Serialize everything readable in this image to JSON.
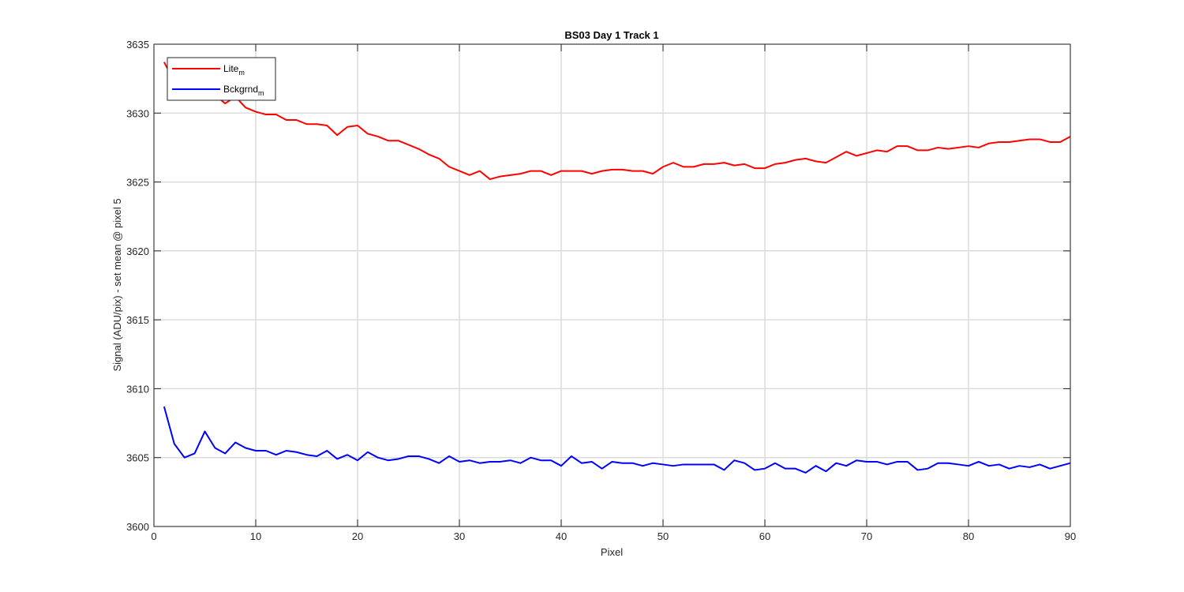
{
  "chart_data": {
    "type": "line",
    "title": "BS03 Day 1 Track 1",
    "xlabel": "Pixel",
    "ylabel": "Signal (ADU/pix) - set mean @ pixel 5",
    "xlim": [
      0,
      90
    ],
    "ylim": [
      3600,
      3635
    ],
    "xticks": [
      0,
      10,
      20,
      30,
      40,
      50,
      60,
      70,
      80,
      90
    ],
    "yticks": [
      3600,
      3605,
      3610,
      3615,
      3620,
      3625,
      3630,
      3635
    ],
    "grid": true,
    "legend_position": "top-left",
    "x": [
      1,
      2,
      3,
      4,
      5,
      6,
      7,
      8,
      9,
      10,
      11,
      12,
      13,
      14,
      15,
      16,
      17,
      18,
      19,
      20,
      21,
      22,
      23,
      24,
      25,
      26,
      27,
      28,
      29,
      30,
      31,
      32,
      33,
      34,
      35,
      36,
      37,
      38,
      39,
      40,
      41,
      42,
      43,
      44,
      45,
      46,
      47,
      48,
      49,
      50,
      51,
      52,
      53,
      54,
      55,
      56,
      57,
      58,
      59,
      60,
      61,
      62,
      63,
      64,
      65,
      66,
      67,
      68,
      69,
      70,
      71,
      72,
      73,
      74,
      75,
      76,
      77,
      78,
      79,
      80,
      81,
      82,
      83,
      84,
      85,
      86,
      87,
      88,
      89,
      90
    ],
    "series": [
      {
        "name": "Lite",
        "name_subscript": "m",
        "color": "#ff0000",
        "values": [
          3633.7,
          3632.3,
          3632.0,
          3631.6,
          3631.4,
          3631.3,
          3630.7,
          3631.2,
          3630.4,
          3630.1,
          3629.9,
          3629.9,
          3629.5,
          3629.5,
          3629.2,
          3629.2,
          3629.1,
          3628.4,
          3629.0,
          3629.1,
          3628.5,
          3628.3,
          3628.0,
          3628.0,
          3627.7,
          3627.4,
          3627.0,
          3626.7,
          3626.1,
          3625.8,
          3625.5,
          3625.8,
          3625.2,
          3625.4,
          3625.5,
          3625.6,
          3625.8,
          3625.8,
          3625.5,
          3625.8,
          3625.8,
          3625.8,
          3625.6,
          3625.8,
          3625.9,
          3625.9,
          3625.8,
          3625.8,
          3625.6,
          3626.1,
          3626.4,
          3626.1,
          3626.1,
          3626.3,
          3626.3,
          3626.4,
          3626.2,
          3626.3,
          3626.0,
          3626.0,
          3626.3,
          3626.4,
          3626.6,
          3626.7,
          3626.5,
          3626.4,
          3626.8,
          3627.2,
          3626.9,
          3627.1,
          3627.3,
          3627.2,
          3627.6,
          3627.6,
          3627.3,
          3627.3,
          3627.5,
          3627.4,
          3627.5,
          3627.6,
          3627.5,
          3627.8,
          3627.9,
          3627.9,
          3628.0,
          3628.1,
          3628.1,
          3627.9,
          3627.9,
          3628.3
        ]
      },
      {
        "name": "Bckgrnd",
        "name_subscript": "m",
        "color": "#0000ff",
        "values": [
          3608.7,
          3606.0,
          3605.0,
          3605.3,
          3606.9,
          3605.7,
          3605.3,
          3606.1,
          3605.7,
          3605.5,
          3605.5,
          3605.2,
          3605.5,
          3605.4,
          3605.2,
          3605.1,
          3605.5,
          3604.9,
          3605.2,
          3604.8,
          3605.4,
          3605.0,
          3604.8,
          3604.9,
          3605.1,
          3605.1,
          3604.9,
          3604.6,
          3605.1,
          3604.7,
          3604.8,
          3604.6,
          3604.7,
          3604.7,
          3604.8,
          3604.6,
          3605.0,
          3604.8,
          3604.8,
          3604.4,
          3605.1,
          3604.6,
          3604.7,
          3604.2,
          3604.7,
          3604.6,
          3604.6,
          3604.4,
          3604.6,
          3604.5,
          3604.4,
          3604.5,
          3604.5,
          3604.5,
          3604.5,
          3604.1,
          3604.8,
          3604.6,
          3604.1,
          3604.2,
          3604.6,
          3604.2,
          3604.2,
          3603.9,
          3604.4,
          3604.0,
          3604.6,
          3604.4,
          3604.8,
          3604.7,
          3604.7,
          3604.5,
          3604.7,
          3604.7,
          3604.1,
          3604.2,
          3604.6,
          3604.6,
          3604.5,
          3604.4,
          3604.7,
          3604.4,
          3604.5,
          3604.2,
          3604.4,
          3604.3,
          3604.5,
          3604.2,
          3604.4,
          3604.6
        ]
      }
    ]
  }
}
